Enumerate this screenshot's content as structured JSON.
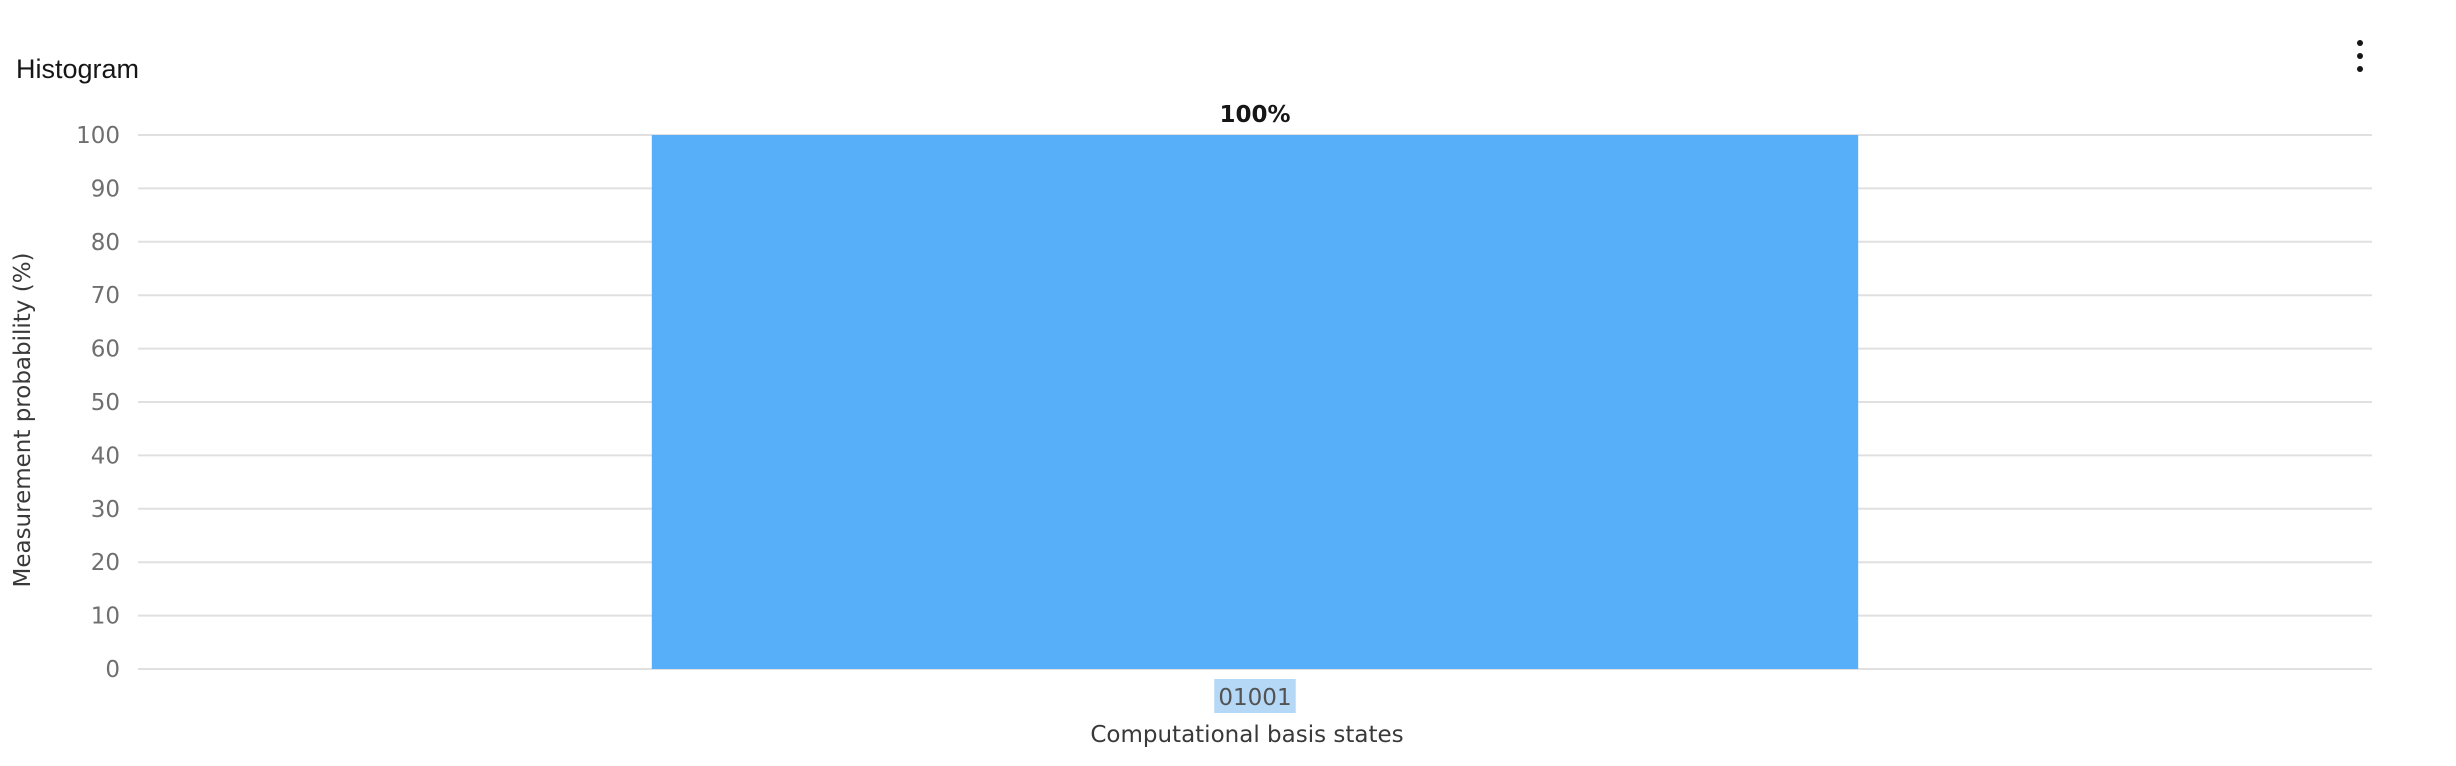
{
  "panel": {
    "title": "Histogram",
    "menu_icon": "overflow-menu-vertical-icon"
  },
  "colors": {
    "bar": "#56aff8",
    "grid": "#e0e0e0",
    "category_highlight": "#b6d8f7"
  },
  "chart_data": {
    "type": "bar",
    "title": "",
    "xlabel": "Computational basis states",
    "ylabel": "Measurement probability (%)",
    "categories": [
      "01001"
    ],
    "values": [
      100
    ],
    "data_labels": [
      "100%"
    ],
    "ylim": [
      0,
      100
    ],
    "yticks": [
      0,
      10,
      20,
      30,
      40,
      50,
      60,
      70,
      80,
      90,
      100
    ],
    "grid": true,
    "legend": "none"
  }
}
